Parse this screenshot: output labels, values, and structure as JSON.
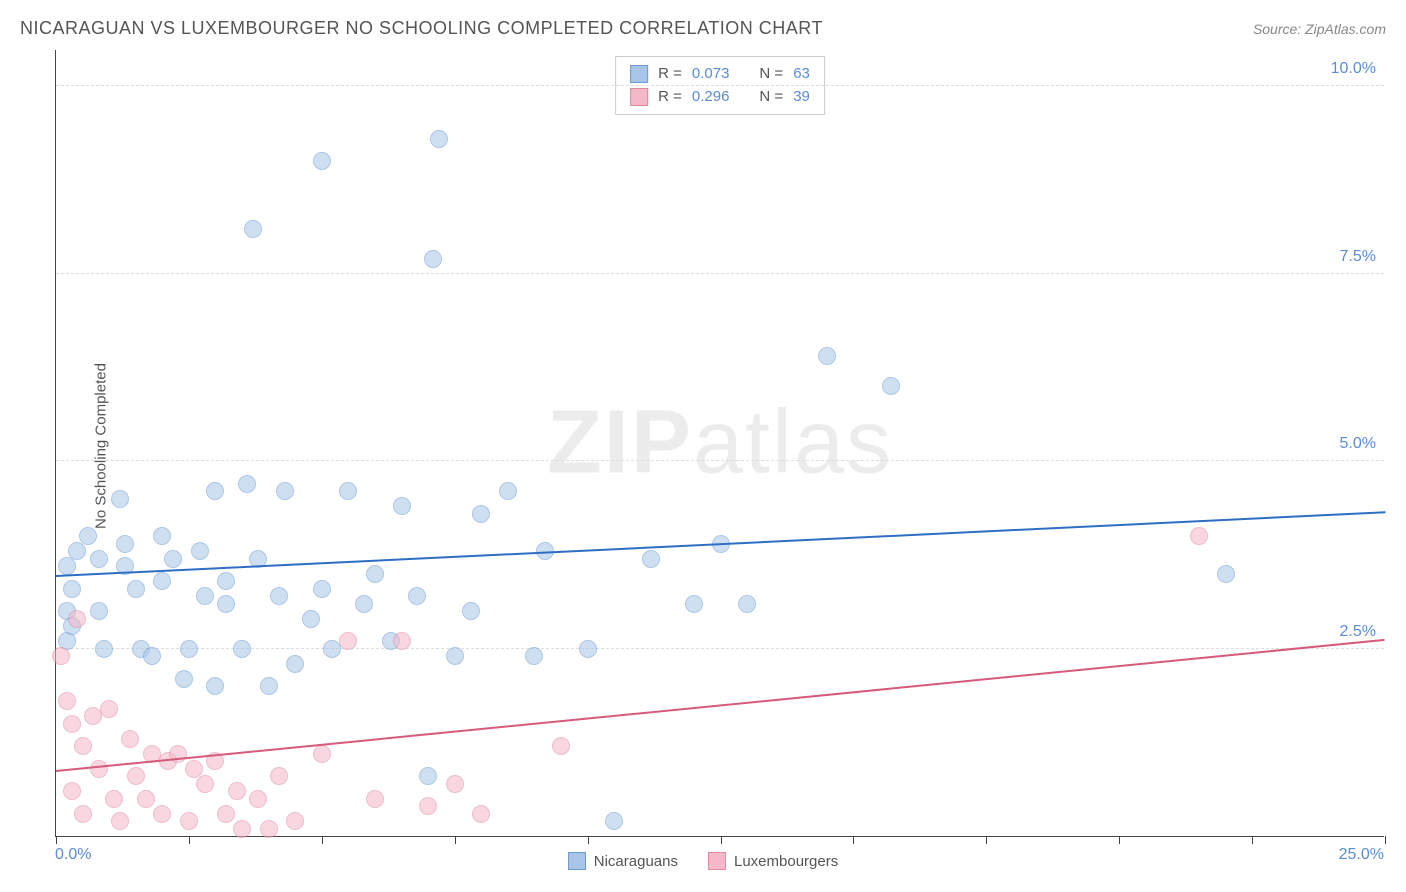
{
  "title": "NICARAGUAN VS LUXEMBOURGER NO SCHOOLING COMPLETED CORRELATION CHART",
  "source": "Source: ZipAtlas.com",
  "watermark_bold": "ZIP",
  "watermark_light": "atlas",
  "y_axis_label": "No Schooling Completed",
  "x_min_label": "0.0%",
  "x_max_label": "25.0%",
  "chart": {
    "type": "scatter",
    "xlim": [
      0,
      25
    ],
    "ylim": [
      0,
      10.5
    ],
    "x_ticks": [
      0,
      2.5,
      5.0,
      7.5,
      10.0,
      12.5,
      15.0,
      17.5,
      20.0,
      22.5,
      25.0
    ],
    "y_gridlines": [
      {
        "v": 2.5,
        "label": "2.5%"
      },
      {
        "v": 5.0,
        "label": "5.0%"
      },
      {
        "v": 7.5,
        "label": "7.5%"
      },
      {
        "v": 10.0,
        "label": "10.0%"
      }
    ],
    "series": [
      {
        "name": "Nicaraguans",
        "fill": "#a8c5e8",
        "stroke": "#6b9bd1",
        "line_color": "#2e6fc4",
        "fill_opacity": 0.55,
        "marker_radius": 9,
        "R_label": "R =",
        "R_value": "0.073",
        "N_label": "N =",
        "N_value": "63",
        "trend": {
          "x0": 0,
          "y0": 3.45,
          "x1": 25,
          "y1": 4.3
        },
        "points": [
          [
            0.2,
            3.6
          ],
          [
            0.2,
            3.0
          ],
          [
            0.2,
            2.6
          ],
          [
            0.3,
            3.3
          ],
          [
            0.3,
            2.8
          ],
          [
            0.4,
            3.8
          ],
          [
            0.6,
            4.0
          ],
          [
            0.8,
            3.7
          ],
          [
            0.8,
            3.0
          ],
          [
            0.9,
            2.5
          ],
          [
            1.2,
            4.5
          ],
          [
            1.3,
            3.6
          ],
          [
            1.3,
            3.9
          ],
          [
            1.5,
            3.3
          ],
          [
            1.6,
            2.5
          ],
          [
            1.8,
            2.4
          ],
          [
            2.0,
            4.0
          ],
          [
            2.0,
            3.4
          ],
          [
            2.2,
            3.7
          ],
          [
            2.4,
            2.1
          ],
          [
            2.5,
            2.5
          ],
          [
            2.7,
            3.8
          ],
          [
            2.8,
            3.2
          ],
          [
            3.0,
            4.6
          ],
          [
            3.0,
            2.0
          ],
          [
            3.2,
            3.1
          ],
          [
            3.2,
            3.4
          ],
          [
            3.5,
            2.5
          ],
          [
            3.6,
            4.7
          ],
          [
            3.7,
            8.1
          ],
          [
            3.8,
            3.7
          ],
          [
            4.0,
            2.0
          ],
          [
            4.2,
            3.2
          ],
          [
            4.3,
            4.6
          ],
          [
            4.5,
            2.3
          ],
          [
            4.8,
            2.9
          ],
          [
            5.0,
            9.0
          ],
          [
            5.0,
            3.3
          ],
          [
            5.2,
            2.5
          ],
          [
            5.5,
            4.6
          ],
          [
            5.8,
            3.1
          ],
          [
            6.0,
            3.5
          ],
          [
            6.3,
            2.6
          ],
          [
            6.5,
            4.4
          ],
          [
            6.8,
            3.2
          ],
          [
            7.0,
            0.8
          ],
          [
            7.1,
            7.7
          ],
          [
            7.2,
            9.3
          ],
          [
            7.5,
            2.4
          ],
          [
            7.8,
            3.0
          ],
          [
            8.0,
            4.3
          ],
          [
            8.5,
            4.6
          ],
          [
            9.0,
            2.4
          ],
          [
            9.2,
            3.8
          ],
          [
            10.0,
            2.5
          ],
          [
            10.5,
            0.2
          ],
          [
            11.2,
            3.7
          ],
          [
            12.0,
            3.1
          ],
          [
            12.5,
            3.9
          ],
          [
            13.0,
            3.1
          ],
          [
            14.5,
            6.4
          ],
          [
            15.7,
            6.0
          ],
          [
            22.0,
            3.5
          ]
        ]
      },
      {
        "name": "Luxembourgers",
        "fill": "#f4b8c8",
        "stroke": "#e08aa0",
        "line_color": "#d65a7a",
        "fill_opacity": 0.55,
        "marker_radius": 9,
        "R_label": "R =",
        "R_value": "0.296",
        "N_label": "N =",
        "N_value": "39",
        "trend": {
          "x0": 0,
          "y0": 0.85,
          "x1": 25,
          "y1": 2.6
        },
        "points": [
          [
            0.1,
            2.4
          ],
          [
            0.2,
            1.8
          ],
          [
            0.3,
            1.5
          ],
          [
            0.3,
            0.6
          ],
          [
            0.4,
            2.9
          ],
          [
            0.5,
            1.2
          ],
          [
            0.5,
            0.3
          ],
          [
            0.7,
            1.6
          ],
          [
            0.8,
            0.9
          ],
          [
            1.0,
            1.7
          ],
          [
            1.1,
            0.5
          ],
          [
            1.2,
            0.2
          ],
          [
            1.4,
            1.3
          ],
          [
            1.5,
            0.8
          ],
          [
            1.7,
            0.5
          ],
          [
            1.8,
            1.1
          ],
          [
            2.0,
            0.3
          ],
          [
            2.1,
            1.0
          ],
          [
            2.3,
            1.1
          ],
          [
            2.5,
            0.2
          ],
          [
            2.6,
            0.9
          ],
          [
            2.8,
            0.7
          ],
          [
            3.0,
            1.0
          ],
          [
            3.2,
            0.3
          ],
          [
            3.4,
            0.6
          ],
          [
            3.5,
            0.1
          ],
          [
            3.8,
            0.5
          ],
          [
            4.0,
            0.1
          ],
          [
            4.2,
            0.8
          ],
          [
            4.5,
            0.2
          ],
          [
            5.0,
            1.1
          ],
          [
            5.5,
            2.6
          ],
          [
            6.0,
            0.5
          ],
          [
            6.5,
            2.6
          ],
          [
            7.0,
            0.4
          ],
          [
            7.5,
            0.7
          ],
          [
            8.0,
            0.3
          ],
          [
            9.5,
            1.2
          ],
          [
            21.5,
            4.0
          ]
        ]
      }
    ]
  },
  "bottom_legend": [
    {
      "label": "Nicaraguans",
      "fill": "#a8c5e8",
      "stroke": "#6b9bd1"
    },
    {
      "label": "Luxembourgers",
      "fill": "#f4b8c8",
      "stroke": "#e08aa0"
    }
  ]
}
